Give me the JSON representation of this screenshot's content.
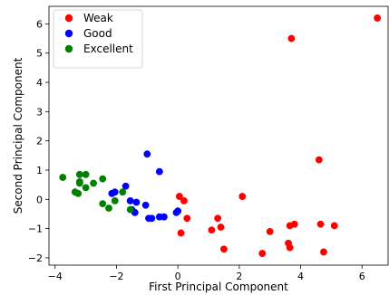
{
  "chart_data": {
    "type": "scatter",
    "title": "",
    "xlabel": "First Principal Component",
    "ylabel": "Second Principal Component",
    "xlim": [
      -4.2,
      6.85
    ],
    "ylim": [
      -2.25,
      6.6
    ],
    "xticks": [
      -4,
      -2,
      0,
      2,
      4,
      6
    ],
    "yticks": [
      -2,
      -1,
      0,
      1,
      2,
      3,
      4,
      5,
      6
    ],
    "grid": false,
    "legend_position": "upper-left",
    "series": [
      {
        "name": "Weak",
        "color": "#ff0000",
        "points": [
          [
            6.5,
            6.2
          ],
          [
            3.7,
            5.5
          ],
          [
            4.6,
            1.35
          ],
          [
            2.1,
            0.1
          ],
          [
            0.05,
            0.1
          ],
          [
            0.2,
            -0.05
          ],
          [
            0.3,
            -0.65
          ],
          [
            0.1,
            -1.15
          ],
          [
            1.3,
            -0.65
          ],
          [
            1.1,
            -1.05
          ],
          [
            1.4,
            -0.95
          ],
          [
            1.5,
            -1.7
          ],
          [
            2.75,
            -1.85
          ],
          [
            3.0,
            -1.1
          ],
          [
            3.65,
            -0.9
          ],
          [
            3.8,
            -0.85
          ],
          [
            3.6,
            -1.5
          ],
          [
            3.65,
            -1.65
          ],
          [
            4.65,
            -0.85
          ],
          [
            5.1,
            -0.9
          ],
          [
            4.75,
            -1.8
          ]
        ]
      },
      {
        "name": "Good",
        "color": "#0000ff",
        "points": [
          [
            -1.0,
            1.55
          ],
          [
            -0.6,
            0.95
          ],
          [
            -1.7,
            0.45
          ],
          [
            -2.15,
            0.2
          ],
          [
            -2.05,
            0.25
          ],
          [
            -1.55,
            -0.05
          ],
          [
            -1.35,
            -0.1
          ],
          [
            -1.05,
            -0.2
          ],
          [
            -1.4,
            -0.45
          ],
          [
            -0.95,
            -0.65
          ],
          [
            -0.85,
            -0.65
          ],
          [
            -0.6,
            -0.6
          ],
          [
            -0.45,
            -0.6
          ],
          [
            -0.05,
            -0.45
          ],
          [
            0.0,
            -0.4
          ],
          [
            -1.5,
            -0.35
          ]
        ]
      },
      {
        "name": "Excellent",
        "color": "#008000",
        "points": [
          [
            -3.75,
            0.75
          ],
          [
            -3.2,
            0.85
          ],
          [
            -3.0,
            0.85
          ],
          [
            -3.2,
            0.6
          ],
          [
            -3.2,
            0.55
          ],
          [
            -2.75,
            0.55
          ],
          [
            -3.0,
            0.4
          ],
          [
            -2.45,
            0.7
          ],
          [
            -3.35,
            0.25
          ],
          [
            -3.25,
            0.2
          ],
          [
            -2.45,
            -0.15
          ],
          [
            -2.05,
            -0.05
          ],
          [
            -2.25,
            -0.3
          ],
          [
            -1.8,
            0.25
          ],
          [
            -1.55,
            -0.35
          ]
        ]
      }
    ]
  }
}
